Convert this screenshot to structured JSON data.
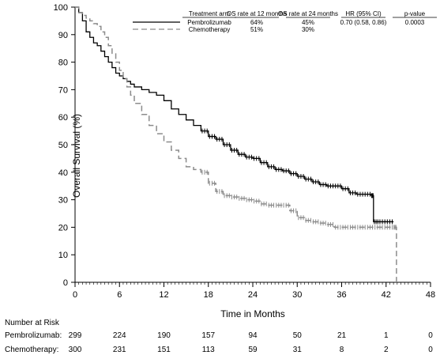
{
  "chart_data": {
    "type": "line",
    "xlabel": "Time in Months",
    "ylabel": "Overall Survival (%)",
    "xlim": [
      0,
      48
    ],
    "ylim": [
      0,
      100
    ],
    "x_ticks": [
      0,
      6,
      12,
      18,
      24,
      30,
      36,
      42,
      48
    ],
    "y_ticks": [
      0,
      10,
      20,
      30,
      40,
      50,
      60,
      70,
      80,
      90,
      100
    ],
    "grid": false,
    "legend_table": {
      "header": [
        "Treatment arm",
        "OS rate at 12 months",
        "OS rate at 24 months",
        "HR (95% CI)",
        "p-value"
      ],
      "rows": [
        {
          "arm": "Pembrolizumab",
          "os12": "64%",
          "os24": "45%",
          "hr": "0.70 (0.58, 0.86)",
          "p": "0.0003"
        },
        {
          "arm": "Chemotherapy",
          "os12": "51%",
          "os24": "30%",
          "hr": "",
          "p": ""
        }
      ]
    },
    "series": [
      {
        "name": "Pembrolizumab",
        "color": "#000000",
        "dash": "solid",
        "x": [
          0,
          0.5,
          1,
          1.5,
          2,
          2.5,
          3,
          3.5,
          4,
          4.5,
          5,
          5.5,
          6,
          6.5,
          7,
          7.5,
          8,
          9,
          10,
          11,
          12,
          13,
          14,
          15,
          16,
          17,
          18,
          19,
          20,
          21,
          22,
          23,
          24,
          25,
          26,
          27,
          28,
          29,
          30,
          31,
          32,
          33,
          34,
          35,
          36,
          37,
          38,
          39,
          40,
          40.3,
          41,
          42,
          43
        ],
        "y": [
          100,
          98,
          95,
          91,
          89,
          87,
          86,
          84,
          82,
          80,
          78,
          76,
          75,
          74,
          73,
          72,
          71,
          70,
          69,
          68,
          66,
          63,
          61,
          59,
          57,
          55,
          53,
          52,
          50,
          48,
          46.5,
          45.5,
          45,
          43.5,
          42,
          41,
          40.5,
          39.5,
          38.5,
          37.5,
          36.5,
          35.5,
          35,
          35,
          34,
          32.5,
          32,
          32,
          31.5,
          22,
          22,
          22,
          22
        ]
      },
      {
        "name": "Chemotherapy",
        "color": "#8c8c8c",
        "dash": "dashed",
        "x": [
          0,
          0.5,
          1,
          1.5,
          2,
          2.5,
          3,
          3.5,
          4,
          4.5,
          5,
          5.5,
          6,
          6.5,
          7,
          7.5,
          8,
          9,
          10,
          11,
          12,
          13,
          14,
          15,
          16,
          17,
          18,
          19,
          20,
          21,
          22,
          23,
          24,
          25,
          26,
          27,
          28,
          29,
          30,
          31,
          32,
          33,
          34,
          35,
          36,
          37,
          38,
          39,
          40,
          41,
          42,
          43,
          43.4,
          43.4
        ],
        "y": [
          100,
          98,
          97,
          96,
          95,
          94,
          93,
          91,
          89,
          86,
          83,
          80,
          77,
          74,
          71,
          68,
          65,
          61,
          57,
          54,
          51,
          48,
          45,
          42,
          41,
          40,
          36,
          33,
          31.5,
          31,
          30.5,
          30,
          29.5,
          28.5,
          28,
          28,
          28,
          26,
          23.5,
          22.5,
          22,
          21.5,
          21,
          20,
          20,
          20,
          20,
          20,
          20,
          20,
          20,
          20,
          20,
          0
        ]
      }
    ]
  },
  "risk_table": {
    "title": "Number at Risk",
    "times": [
      0,
      6,
      12,
      18,
      24,
      30,
      36,
      42,
      48
    ],
    "rows": [
      {
        "label": "Pembrolizumab:",
        "values": [
          "299",
          "224",
          "190",
          "157",
          "94",
          "50",
          "21",
          "1",
          "0"
        ]
      },
      {
        "label": "Chemotherapy:",
        "values": [
          "300",
          "231",
          "151",
          "113",
          "59",
          "31",
          "8",
          "2",
          "0"
        ]
      }
    ]
  }
}
